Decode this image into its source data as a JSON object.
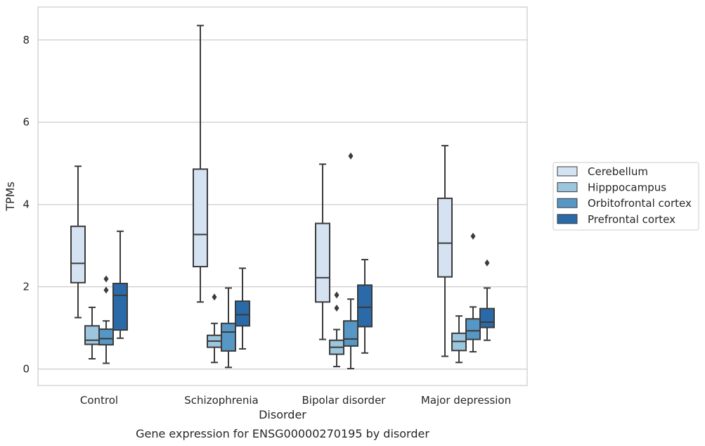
{
  "caption": "Gene expression for ENSG00000270195 by disorder",
  "chart_data": {
    "type": "box",
    "xlabel": "Disorder",
    "ylabel": "TPMs",
    "ylim": [
      -0.4,
      8.8
    ],
    "yticks": [
      0,
      2,
      4,
      6,
      8
    ],
    "grid": true,
    "legend_position": "right",
    "categories": [
      "Control",
      "Schizophrenia",
      "Bipolar disorder",
      "Major depression"
    ],
    "series": [
      {
        "name": "Cerebellum",
        "color": "#d4e2f1",
        "boxes": [
          {
            "whislo": 1.25,
            "q1": 2.1,
            "med": 2.57,
            "q3": 3.47,
            "whishi": 4.93,
            "fliers": []
          },
          {
            "whislo": 1.63,
            "q1": 2.49,
            "med": 3.27,
            "q3": 4.86,
            "whishi": 8.35,
            "fliers": []
          },
          {
            "whislo": 0.72,
            "q1": 1.63,
            "med": 2.22,
            "q3": 3.54,
            "whishi": 4.98,
            "fliers": []
          },
          {
            "whislo": 0.31,
            "q1": 2.24,
            "med": 3.06,
            "q3": 4.15,
            "whishi": 5.43,
            "fliers": []
          }
        ]
      },
      {
        "name": "Hipppocampus",
        "color": "#9cc5de",
        "boxes": [
          {
            "whislo": 0.25,
            "q1": 0.6,
            "med": 0.7,
            "q3": 1.05,
            "whishi": 1.5,
            "fliers": []
          },
          {
            "whislo": 0.16,
            "q1": 0.53,
            "med": 0.68,
            "q3": 0.82,
            "whishi": 1.11,
            "fliers": [
              1.75
            ]
          },
          {
            "whislo": 0.06,
            "q1": 0.36,
            "med": 0.53,
            "q3": 0.7,
            "whishi": 0.96,
            "fliers": [
              1.48,
              1.8
            ]
          },
          {
            "whislo": 0.16,
            "q1": 0.45,
            "med": 0.67,
            "q3": 0.87,
            "whishi": 1.29,
            "fliers": []
          }
        ]
      },
      {
        "name": "Orbitofrontal cortex",
        "color": "#5697c5",
        "boxes": [
          {
            "whislo": 0.14,
            "q1": 0.59,
            "med": 0.74,
            "q3": 0.97,
            "whishi": 1.17,
            "fliers": [
              1.92,
              2.19
            ]
          },
          {
            "whislo": 0.04,
            "q1": 0.44,
            "med": 0.9,
            "q3": 1.11,
            "whishi": 1.97,
            "fliers": []
          },
          {
            "whislo": 0.01,
            "q1": 0.56,
            "med": 0.73,
            "q3": 1.17,
            "whishi": 1.7,
            "fliers": [
              5.18
            ]
          },
          {
            "whislo": 0.42,
            "q1": 0.72,
            "med": 0.93,
            "q3": 1.22,
            "whishi": 1.51,
            "fliers": [
              3.23
            ]
          }
        ]
      },
      {
        "name": "Prefrontal cortex",
        "color": "#2a6aa9",
        "boxes": [
          {
            "whislo": 0.75,
            "q1": 0.95,
            "med": 1.79,
            "q3": 2.08,
            "whishi": 3.35,
            "fliers": []
          },
          {
            "whislo": 0.49,
            "q1": 1.05,
            "med": 1.32,
            "q3": 1.65,
            "whishi": 2.45,
            "fliers": []
          },
          {
            "whislo": 0.39,
            "q1": 1.03,
            "med": 1.5,
            "q3": 2.04,
            "whishi": 2.66,
            "fliers": []
          },
          {
            "whislo": 0.7,
            "q1": 1.01,
            "med": 1.14,
            "q3": 1.47,
            "whishi": 1.97,
            "fliers": [
              2.58
            ]
          }
        ]
      }
    ]
  }
}
